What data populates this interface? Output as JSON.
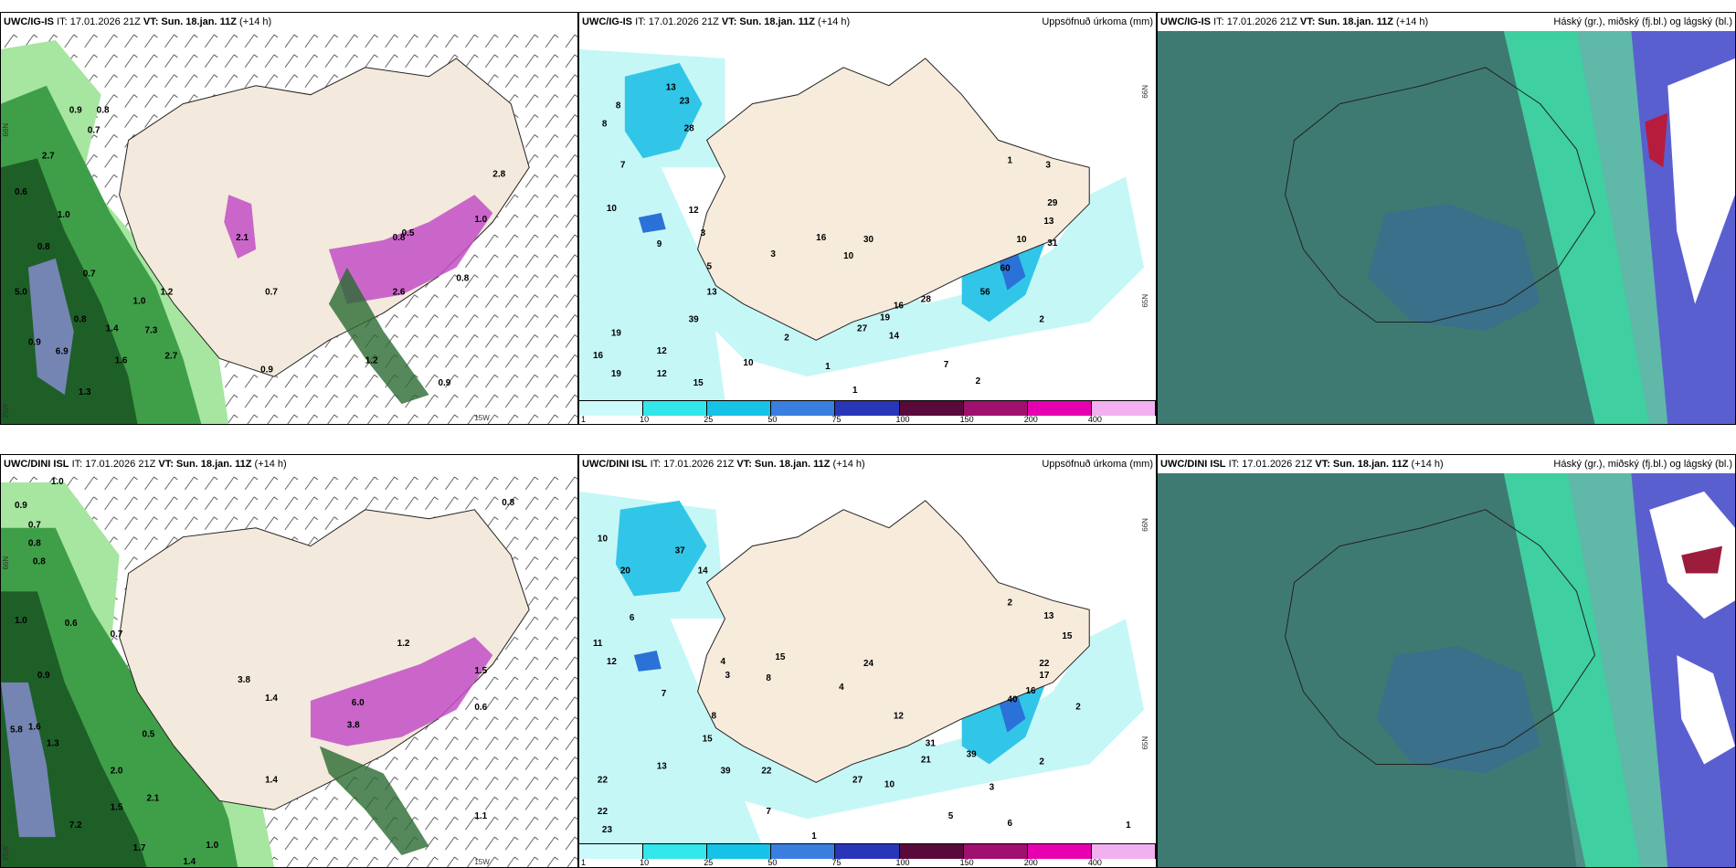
{
  "rows": [
    {
      "model": "UWC/IG-IS",
      "init_time": "IT: 17.01.2026 21Z",
      "valid_label": "VT:",
      "valid_time": "Sun. 18.jan. 11Z",
      "lead": "(+14 h)"
    },
    {
      "model": "UWC/DINI ISL",
      "init_time": "IT: 17.01.2026 21Z",
      "valid_label": "VT:",
      "valid_time": "Sun. 18.jan. 11Z",
      "lead": "(+14 h)"
    }
  ],
  "panels": {
    "wind_precip": {
      "title": "",
      "grid_labels": [
        "66N",
        "65N",
        "25W",
        "15W"
      ],
      "values_top": [
        "0.9",
        "0.8",
        "0.7",
        "2.7",
        "0.6",
        "1.0",
        "0.8",
        "0.7",
        "5.0",
        "0.9",
        "6.9",
        "1.3",
        "0.8",
        "1.4",
        "1.6",
        "7.3",
        "2.7",
        "1.0",
        "1.2",
        "2.1",
        "0.7",
        "2.6",
        "0.8",
        "0.5",
        "0.8",
        "1.0",
        "2.8",
        "0.9",
        "1.2",
        "0.9"
      ],
      "values_bottom": [
        "1.0",
        "0.9",
        "0.8",
        "0.7",
        "0.8",
        "0.6",
        "1.0",
        "0.7",
        "0.9",
        "5.8",
        "1.6",
        "1.3",
        "2.0",
        "1.5",
        "7.2",
        "1.7",
        "1.4",
        "1.0",
        "3.8",
        "1.4",
        "2.1",
        "6.0",
        "3.8",
        "1.2",
        "1.5",
        "0.8",
        "0.6",
        "1.1",
        "1.4",
        "0.5"
      ]
    },
    "accum_precip": {
      "title": "Uppsöfnuð úrkoma (mm)",
      "grid_labels": [
        "66N",
        "65N"
      ],
      "legend_ticks": [
        "1",
        "10",
        "25",
        "50",
        "75",
        "100",
        "150",
        "200",
        "400"
      ],
      "legend_colors": [
        "#ccfafa",
        "#33e6ea",
        "#16c3e6",
        "#3a7fe0",
        "#2a36b8",
        "#5a0a3a",
        "#a0106e",
        "#e600b0",
        "#f2b0f0"
      ],
      "values_top": [
        "8",
        "8",
        "7",
        "10",
        "9",
        "13",
        "23",
        "28",
        "12",
        "3",
        "5",
        "13",
        "39",
        "10",
        "19",
        "16",
        "12",
        "19",
        "12",
        "15",
        "16",
        "30",
        "10",
        "3",
        "2",
        "1",
        "27",
        "14",
        "16",
        "28",
        "19",
        "60",
        "56",
        "10",
        "13",
        "29",
        "31",
        "3",
        "1",
        "2",
        "7",
        "2",
        "1"
      ],
      "values_bottom": [
        "10",
        "20",
        "14",
        "37",
        "6",
        "11",
        "12",
        "7",
        "4",
        "3",
        "8",
        "15",
        "39",
        "22",
        "13",
        "22",
        "22",
        "23",
        "15",
        "8",
        "24",
        "4",
        "12",
        "27",
        "10",
        "7",
        "5",
        "31",
        "21",
        "39",
        "40",
        "16",
        "17",
        "22",
        "13",
        "15",
        "2",
        "2",
        "3",
        "1",
        "6",
        "2",
        "1"
      ]
    },
    "clouds": {
      "title": "Háský (gr.), miðský (fj.bl.) og lágský (bl.)"
    }
  }
}
